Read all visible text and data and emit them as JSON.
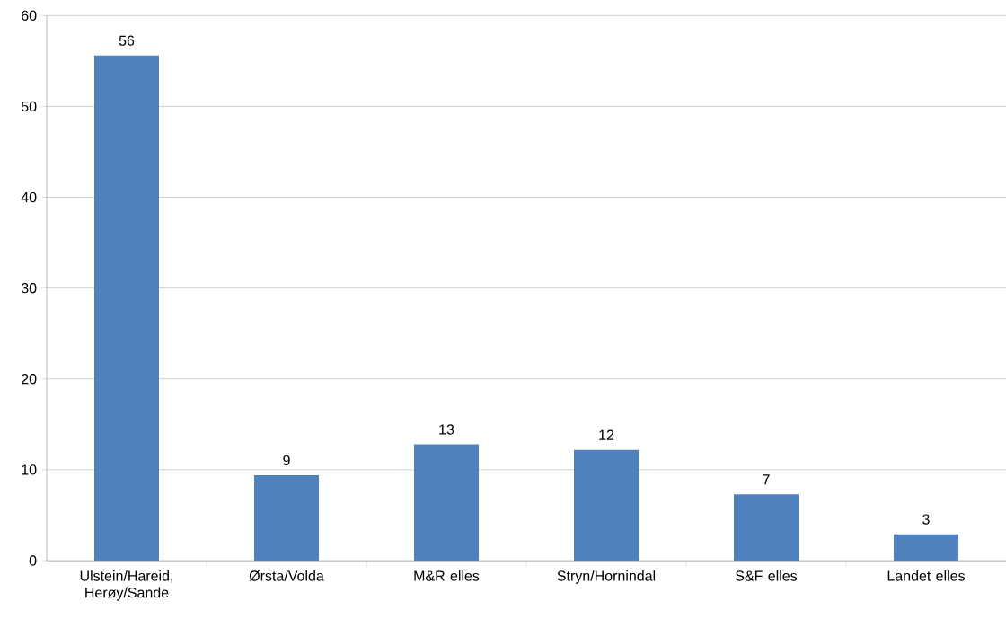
{
  "chart_data": {
    "type": "bar",
    "categories": [
      "Ulstein/Hareid, Herøy/Sande",
      "Ørsta/Volda",
      "M&R elles",
      "Stryn/Hornindal",
      "S&F elles",
      "Landet elles"
    ],
    "values": [
      55.6,
      9.4,
      12.8,
      12.2,
      7.3,
      2.9
    ],
    "value_labels": [
      "56",
      "9",
      "13",
      "12",
      "7",
      "3"
    ],
    "color": "#4f81bd",
    "ylim": [
      0,
      60
    ],
    "yticks": [
      0,
      10,
      20,
      30,
      40,
      50,
      60
    ],
    "grid": "y"
  }
}
